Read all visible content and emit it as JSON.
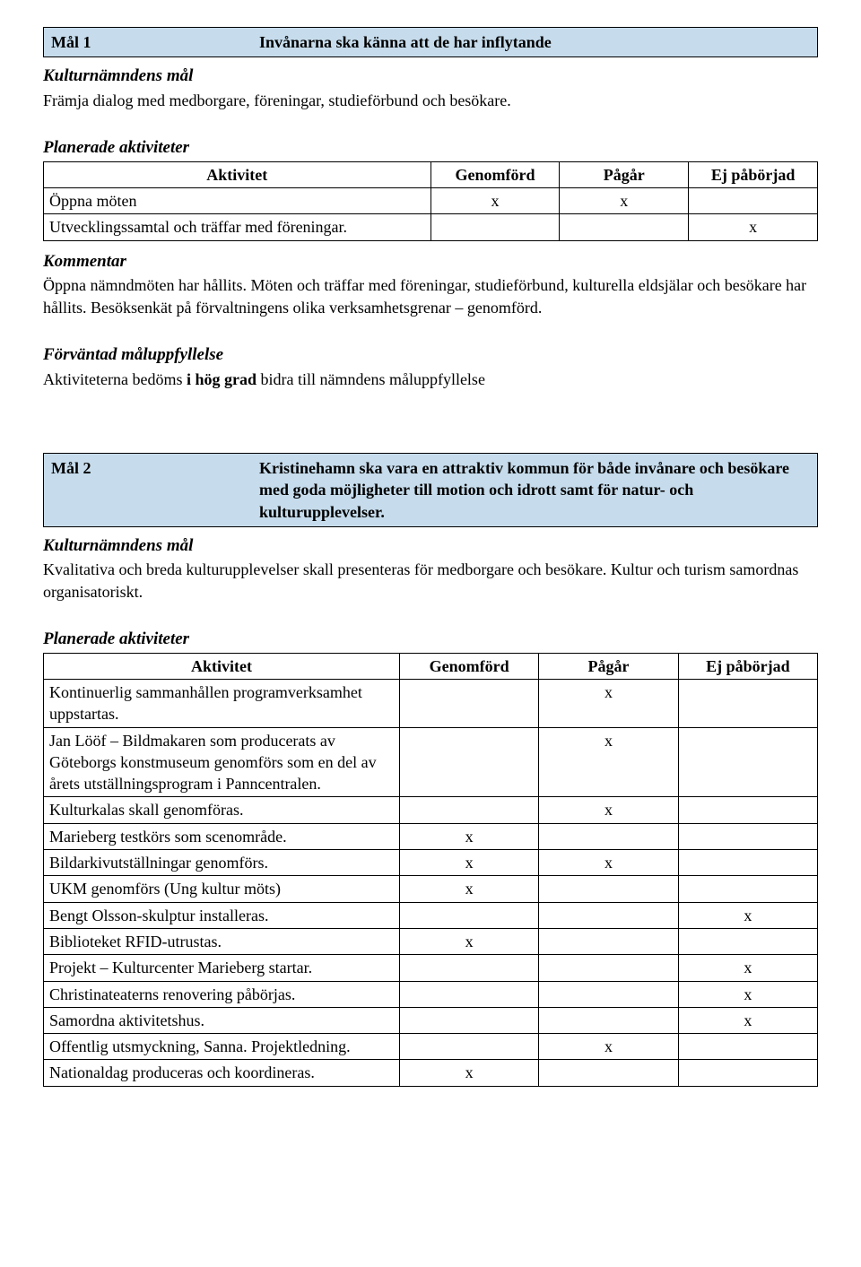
{
  "colors": {
    "header_fill": "#c6dcec",
    "border": "#000000",
    "text": "#000000",
    "page_bg": "#ffffff"
  },
  "typography": {
    "body_font": "Garamond/serif",
    "body_size_pt": 14,
    "heading_style": "bold italic"
  },
  "goal1": {
    "label": "Mål 1",
    "title": "Invånarna ska känna att de har inflytande",
    "sub_heading": "Kulturnämndens mål",
    "sub_text": "Främja dialog med medborgare, föreningar, studieförbund och besökare.",
    "planned_heading": "Planerade aktiviteter",
    "table": {
      "columns": [
        "Aktivitet",
        "Genomförd",
        "Pågår",
        "Ej påbörjad"
      ],
      "rows": [
        {
          "activity": "Öppna möten",
          "done": "x",
          "ongoing": "x",
          "notstarted": ""
        },
        {
          "activity": "Utvecklingssamtal och träffar med föreningar.",
          "done": "",
          "ongoing": "",
          "notstarted": "x"
        }
      ]
    },
    "comment_heading": "Kommentar",
    "comment_text": "Öppna nämndmöten har hållits. Möten och träffar med föreningar, studieförbund, kulturella eldsjälar och besökare har hållits. Besöksenkät på förvaltningens olika verksamhetsgrenar – genomförd.",
    "expected_heading": "Förväntad måluppfyllelse",
    "expected_prefix": "Aktiviteterna bedöms ",
    "expected_bold": "i hög grad",
    "expected_suffix": " bidra till nämndens måluppfyllelse"
  },
  "goal2": {
    "label": "Mål 2",
    "title": "Kristinehamn ska vara en attraktiv kommun för både invånare och besökare med goda möjligheter till motion och idrott samt för natur- och kulturupplevelser.",
    "sub_heading": "Kulturnämndens mål",
    "sub_text": "Kvalitativa och breda kulturupplevelser skall presenteras för medborgare och besökare. Kultur och turism samordnas organisatoriskt.",
    "planned_heading": "Planerade aktiviteter",
    "table": {
      "columns": [
        "Aktivitet",
        "Genomförd",
        "Pågår",
        "Ej påbörjad"
      ],
      "rows": [
        {
          "activity": "Kontinuerlig sammanhållen programverksamhet uppstartas.",
          "done": "",
          "ongoing": "x",
          "notstarted": ""
        },
        {
          "activity": "Jan Lööf – Bildmakaren som producerats av Göteborgs konstmuseum genomförs som en del av årets utställningsprogram i Panncentralen.",
          "done": "",
          "ongoing": "x",
          "notstarted": ""
        },
        {
          "activity": "Kulturkalas skall genomföras.",
          "done": "",
          "ongoing": "x",
          "notstarted": ""
        },
        {
          "activity": "Marieberg testkörs som scenområde.",
          "done": "x",
          "ongoing": "",
          "notstarted": ""
        },
        {
          "activity": "Bildarkivutställningar genomförs.",
          "done": "x",
          "ongoing": "x",
          "notstarted": ""
        },
        {
          "activity": "UKM genomförs (Ung kultur möts)",
          "done": "x",
          "ongoing": "",
          "notstarted": ""
        },
        {
          "activity": "Bengt Olsson-skulptur installeras.",
          "done": "",
          "ongoing": "",
          "notstarted": "x"
        },
        {
          "activity": "Biblioteket RFID-utrustas.",
          "done": "x",
          "ongoing": "",
          "notstarted": ""
        },
        {
          "activity": "Projekt – Kulturcenter Marieberg startar.",
          "done": "",
          "ongoing": "",
          "notstarted": "x"
        },
        {
          "activity": "Christinateaterns renovering påbörjas.",
          "done": "",
          "ongoing": "",
          "notstarted": "x"
        },
        {
          "activity": "Samordna aktivitetshus.",
          "done": "",
          "ongoing": "",
          "notstarted": "x"
        },
        {
          "activity": "Offentlig utsmyckning, Sanna. Projektledning.",
          "done": "",
          "ongoing": "x",
          "notstarted": ""
        },
        {
          "activity": "Nationaldag produceras och koordineras.",
          "done": "x",
          "ongoing": "",
          "notstarted": ""
        }
      ]
    }
  }
}
